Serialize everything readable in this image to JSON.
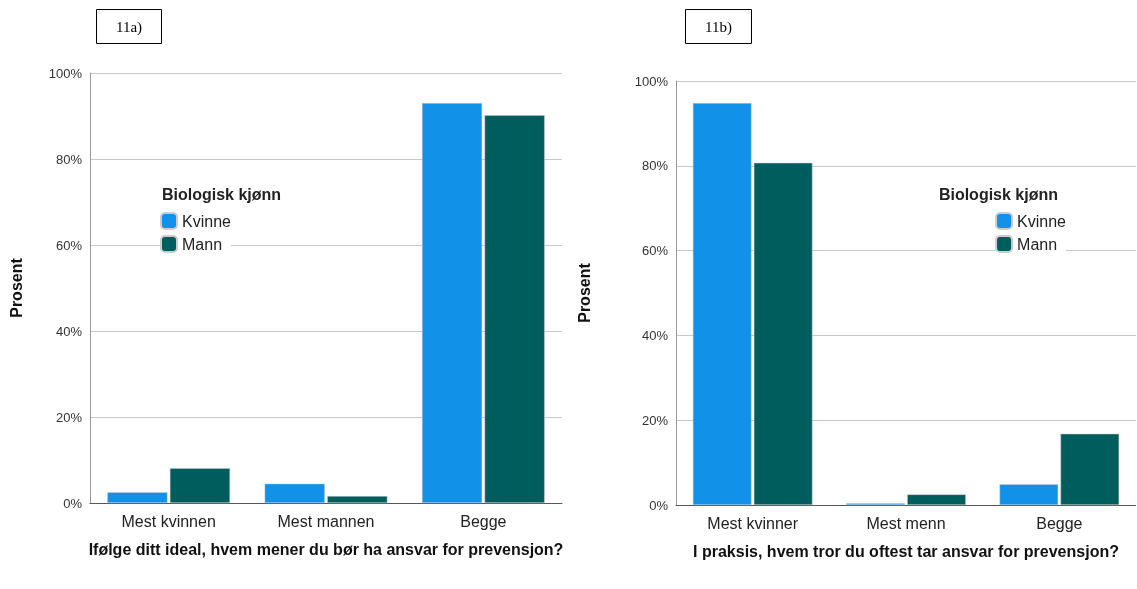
{
  "chart_data": [
    {
      "type": "bar",
      "title": "11a)",
      "categories": [
        "Mest kvinnen",
        "Mest mannen",
        "Begge"
      ],
      "xlabel": "Ifølge ditt ideal, hvem mener du bør ha ansvar for prevensjon?",
      "ylabel": "Prosent",
      "legend_title": "Biologisk kjønn",
      "legend": "left",
      "grid": "y",
      "ylim": [
        0,
        100
      ],
      "yticks": [
        {
          "value": 0,
          "label": "0%"
        },
        {
          "value": 20,
          "label": "20%"
        },
        {
          "value": 40,
          "label": "40%"
        },
        {
          "value": 60,
          "label": "60%"
        },
        {
          "value": 80,
          "label": "80%"
        },
        {
          "value": 100,
          "label": "100%"
        }
      ],
      "series": [
        {
          "name": "Kvinne",
          "color": "#1192e8",
          "values": [
            2.5,
            4.5,
            93.0
          ]
        },
        {
          "name": "Mann",
          "color": "#005d5d",
          "values": [
            8.1,
            1.6,
            90.2
          ]
        }
      ]
    },
    {
      "type": "bar",
      "title": "11b)",
      "categories": [
        "Mest kvinner",
        "Mest menn",
        "Begge"
      ],
      "xlabel": "I praksis, hvem tror du oftest tar ansvar for prevensjon?",
      "ylabel": "Prosent",
      "legend_title": "Biologisk kjønn",
      "legend": "right",
      "grid": "y",
      "ylim": [
        0,
        100
      ],
      "yticks": [
        {
          "value": 0,
          "label": "0%"
        },
        {
          "value": 20,
          "label": "20%"
        },
        {
          "value": 40,
          "label": "40%"
        },
        {
          "value": 60,
          "label": "60%"
        },
        {
          "value": 80,
          "label": "80%"
        },
        {
          "value": 100,
          "label": "100%"
        }
      ],
      "series": [
        {
          "name": "Kvinne",
          "color": "#1192e8",
          "values": [
            94.8,
            0.4,
            4.9
          ]
        },
        {
          "name": "Mann",
          "color": "#005d5d",
          "values": [
            80.7,
            2.5,
            16.8
          ]
        }
      ]
    }
  ]
}
